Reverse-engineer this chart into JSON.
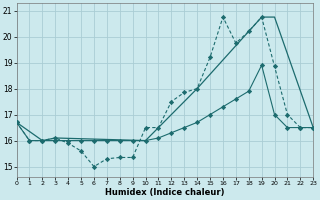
{
  "xlabel": "Humidex (Indice chaleur)",
  "bg_color": "#cce9ed",
  "line_color": "#1c6b6e",
  "grid_color": "#aacdd4",
  "xlim": [
    0,
    23
  ],
  "ylim": [
    14.6,
    21.3
  ],
  "yticks": [
    15,
    16,
    17,
    18,
    19,
    20,
    21
  ],
  "xticks": [
    0,
    1,
    2,
    3,
    4,
    5,
    6,
    7,
    8,
    9,
    10,
    11,
    12,
    13,
    14,
    15,
    16,
    17,
    18,
    19,
    20,
    21,
    22,
    23
  ],
  "s1x": [
    0,
    1,
    2,
    3,
    4,
    5,
    6,
    7,
    8,
    9,
    10,
    11,
    12,
    13,
    14,
    15,
    16,
    17,
    18,
    19,
    20,
    21,
    22,
    23
  ],
  "s1y": [
    16.7,
    16.0,
    16.0,
    16.1,
    15.9,
    15.6,
    15.0,
    15.3,
    15.35,
    15.35,
    16.5,
    16.5,
    17.5,
    17.85,
    18.0,
    19.2,
    20.75,
    19.75,
    20.2,
    20.75,
    18.85,
    17.0,
    16.5,
    16.5
  ],
  "s2x": [
    0,
    2,
    3,
    10,
    14,
    19,
    20,
    23
  ],
  "s2y": [
    16.7,
    16.0,
    16.1,
    16.0,
    18.0,
    20.75,
    20.75,
    16.5
  ],
  "s3x": [
    0,
    1,
    2,
    3,
    4,
    5,
    6,
    7,
    8,
    9,
    10,
    11,
    12,
    13,
    14,
    15,
    16,
    17,
    18,
    19,
    20,
    21,
    22,
    23
  ],
  "s3y": [
    16.7,
    16.0,
    16.0,
    16.0,
    16.0,
    16.0,
    16.0,
    16.0,
    16.0,
    16.0,
    16.0,
    16.1,
    16.3,
    16.5,
    16.7,
    17.0,
    17.3,
    17.6,
    17.9,
    18.9,
    17.0,
    16.5,
    16.5,
    16.5
  ]
}
